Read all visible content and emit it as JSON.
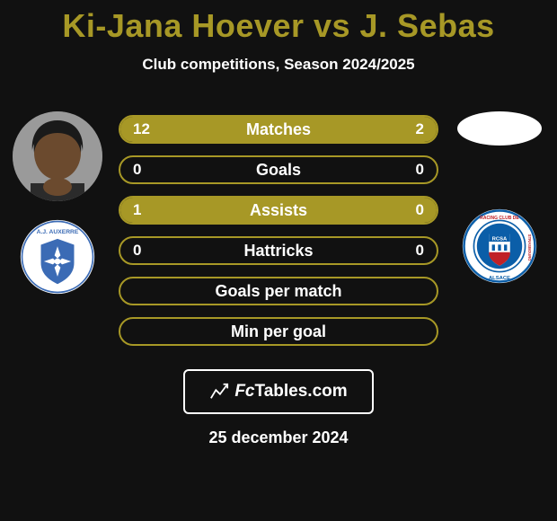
{
  "title_color": "#a79826",
  "title": "Ki-Jana Hoever vs J. Sebas",
  "subtitle": "Club competitions, Season 2024/2025",
  "player_left": {
    "skin": "#6b4a2e",
    "hair": "#1a1a1a"
  },
  "player_right_flag_bg": "#ffffff",
  "club_left": {
    "bg": "#ffffff",
    "ring": "#3b6bb5",
    "text_color": "#3b6bb5",
    "top_text": "A.J. AUXERRE"
  },
  "club_right": {
    "bg": "#ffffff",
    "ring": "#0b5ea8",
    "accent": "#c02127",
    "top_text": "RACING CLUB DE",
    "mid_text": "STRASBOURG",
    "bottom_text": "ALSACE"
  },
  "bars": [
    {
      "label": "Matches",
      "left": "12",
      "right": "2",
      "left_pct": 85.7,
      "right_pct": 14.3
    },
    {
      "label": "Goals",
      "left": "0",
      "right": "0",
      "left_pct": 0,
      "right_pct": 0
    },
    {
      "label": "Assists",
      "left": "1",
      "right": "0",
      "left_pct": 100,
      "right_pct": 0
    },
    {
      "label": "Hattricks",
      "left": "0",
      "right": "0",
      "left_pct": 0,
      "right_pct": 0
    },
    {
      "label": "Goals per match",
      "left": "",
      "right": "",
      "left_pct": 0,
      "right_pct": 0
    },
    {
      "label": "Min per goal",
      "left": "",
      "right": "",
      "left_pct": 0,
      "right_pct": 0
    }
  ],
  "bar_style": {
    "border_color": "#a79826",
    "fill_left": "#a79826",
    "fill_right": "#a79826",
    "label_color": "#ffffff",
    "val_color": "#ffffff"
  },
  "footer": {
    "brand_prefix": "Fc",
    "brand_suffix": "Tables.com"
  },
  "date": "25 december 2024"
}
